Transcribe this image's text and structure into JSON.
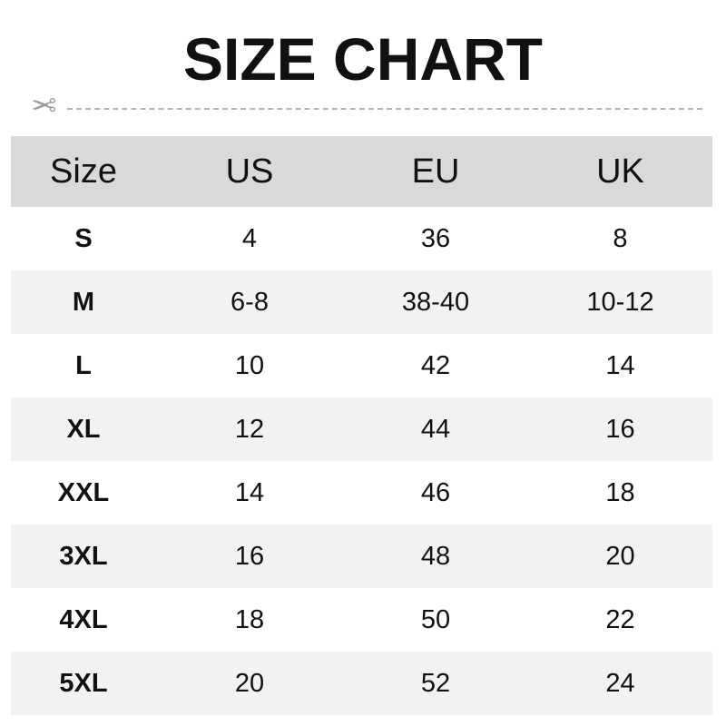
{
  "title": "SIZE CHART",
  "icons": {
    "cut_line": "scissors-icon"
  },
  "colors": {
    "header_bg": "#d9d9d9",
    "alt_row_bg": "#f2f2f2",
    "text": "#111111"
  },
  "chart_data": {
    "type": "table",
    "title": "SIZE CHART",
    "columns": [
      "Size",
      "US",
      "EU",
      "UK"
    ],
    "rows": [
      [
        "S",
        "4",
        "36",
        "8"
      ],
      [
        "M",
        "6-8",
        "38-40",
        "10-12"
      ],
      [
        "L",
        "10",
        "42",
        "14"
      ],
      [
        "XL",
        "12",
        "44",
        "16"
      ],
      [
        "XXL",
        "14",
        "46",
        "18"
      ],
      [
        "3XL",
        "16",
        "48",
        "20"
      ],
      [
        "4XL",
        "18",
        "50",
        "22"
      ],
      [
        "5XL",
        "20",
        "52",
        "24"
      ]
    ]
  }
}
